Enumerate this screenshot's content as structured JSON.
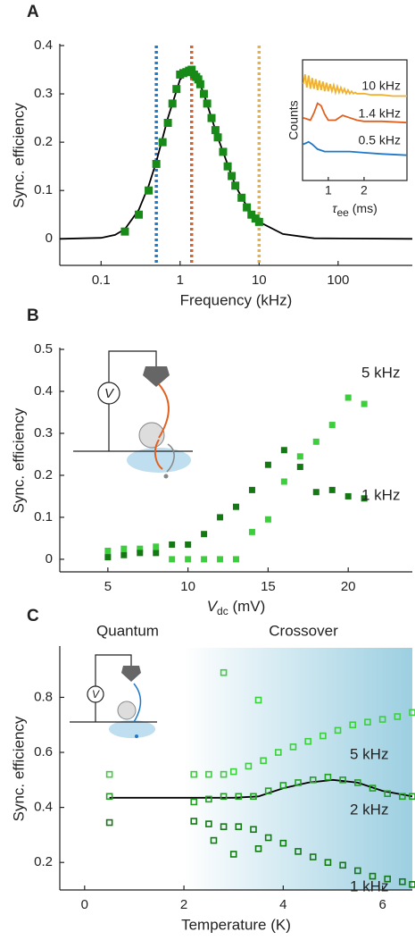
{
  "chart_data": [
    {
      "label": "A",
      "type": "scatter",
      "xscale": "log",
      "xlabel": "Frequency (kHz)",
      "ylabel": "Sync. efficiency",
      "xlim": [
        0.03,
        870
      ],
      "xticks": [
        0.1,
        1,
        10,
        100
      ],
      "ylim": [
        -0.055,
        0.4
      ],
      "yticks": [
        0,
        0.1,
        0.2,
        0.3,
        0.4
      ],
      "series": [
        {
          "color": "#178a17",
          "marker": "filled",
          "x": [
            0.2,
            0.3,
            0.4,
            0.5,
            0.6,
            0.7,
            0.8,
            0.9,
            1.0,
            1.1,
            1.2,
            1.3,
            1.4,
            1.5,
            1.6,
            1.7,
            1.8,
            2,
            2.2,
            2.5,
            2.8,
            3,
            3.5,
            4,
            4.5,
            5,
            6,
            7,
            8,
            9,
            10
          ],
          "values": [
            0.015,
            0.05,
            0.1,
            0.155,
            0.2,
            0.24,
            0.28,
            0.31,
            0.34,
            0.343,
            0.345,
            0.348,
            0.35,
            0.34,
            0.335,
            0.33,
            0.32,
            0.3,
            0.28,
            0.25,
            0.225,
            0.21,
            0.18,
            0.15,
            0.13,
            0.11,
            0.085,
            0.065,
            0.05,
            0.042,
            0.035
          ]
        }
      ],
      "curve": {
        "color": "#000000",
        "x": [
          0.03,
          0.1,
          0.15,
          0.2,
          0.3,
          0.4,
          0.5,
          0.7,
          1,
          1.3,
          1.6,
          2,
          3,
          5,
          8,
          10,
          20,
          50,
          870
        ],
        "values": [
          0,
          0.002,
          0.008,
          0.02,
          0.06,
          0.11,
          0.16,
          0.25,
          0.33,
          0.345,
          0.34,
          0.3,
          0.21,
          0.11,
          0.05,
          0.035,
          0.01,
          0.001,
          0
        ]
      },
      "vlines": [
        {
          "x": 0.5,
          "color": "#1f78c8"
        },
        {
          "x": 1.4,
          "color": "#e06020"
        },
        {
          "x": 10,
          "color": "#f0b030"
        }
      ],
      "inset": {
        "type": "line",
        "ylabel": "Counts",
        "xlabel": {
          "main": "τ",
          "sub": "ee",
          "unit": " (ms)"
        },
        "xlim": [
          0.28,
          3.2
        ],
        "xticks": [
          1,
          2
        ],
        "ylim": [
          0,
          1
        ],
        "series": [
          {
            "name": "10 kHz",
            "color": "#f0b030",
            "x": [
              0.3,
              0.35,
              0.4,
              0.45,
              0.5,
              0.55,
              0.6,
              0.65,
              0.7,
              0.75,
              0.8,
              0.85,
              0.9,
              0.95,
              1.0,
              1.05,
              1.1,
              1.15,
              1.2,
              1.25,
              1.3,
              1.35,
              1.4,
              1.45,
              1.5,
              1.55,
              1.6,
              1.65,
              1.7,
              1.75,
              1.8,
              2.0,
              2.2,
              2.5,
              2.8,
              3.2
            ],
            "values": [
              0.8,
              0.88,
              0.77,
              0.87,
              0.76,
              0.85,
              0.76,
              0.84,
              0.75,
              0.83,
              0.75,
              0.82,
              0.74,
              0.81,
              0.74,
              0.8,
              0.74,
              0.79,
              0.73,
              0.78,
              0.73,
              0.77,
              0.73,
              0.76,
              0.72,
              0.75,
              0.72,
              0.74,
              0.72,
              0.73,
              0.72,
              0.72,
              0.71,
              0.71,
              0.7,
              0.7
            ]
          },
          {
            "name": "1.4 kHz",
            "color": "#e06020",
            "x": [
              0.3,
              0.5,
              0.6,
              0.7,
              0.8,
              0.9,
              1.0,
              1.2,
              1.4,
              1.6,
              1.8,
              2.0,
              2.5,
              3.2
            ],
            "values": [
              0.52,
              0.5,
              0.56,
              0.64,
              0.62,
              0.55,
              0.5,
              0.5,
              0.54,
              0.52,
              0.5,
              0.49,
              0.49,
              0.48
            ]
          },
          {
            "name": "0.5 kHz",
            "color": "#1f78c8",
            "x": [
              0.3,
              0.45,
              0.55,
              0.7,
              0.9,
              1.2,
              1.6,
              2,
              2.5,
              3.2
            ],
            "values": [
              0.3,
              0.32,
              0.3,
              0.26,
              0.24,
              0.24,
              0.24,
              0.23,
              0.22,
              0.21
            ]
          }
        ]
      }
    },
    {
      "label": "B",
      "type": "scatter",
      "xlabel": {
        "main": "V",
        "sub": "dc",
        "unit": " (mV)"
      },
      "ylabel": "Sync. efficiency",
      "xlim": [
        2,
        24
      ],
      "xticks": [
        5,
        10,
        15,
        20
      ],
      "ylim": [
        -0.03,
        0.5
      ],
      "yticks": [
        0,
        0.1,
        0.2,
        0.3,
        0.4,
        0.5
      ],
      "inset_label": "V",
      "series": [
        {
          "name": "5 kHz",
          "color": "#3ccf3c",
          "marker": "filled",
          "x": [
            5,
            6,
            7,
            8,
            9,
            10,
            11,
            12,
            13,
            14,
            15,
            16,
            17,
            18,
            19,
            20,
            21
          ],
          "values": [
            0.02,
            0.025,
            0.025,
            0.03,
            0.0,
            0.0,
            0.0,
            0.0,
            0.0,
            0.065,
            0.095,
            0.185,
            0.245,
            0.28,
            0.32,
            0.385,
            0.37
          ]
        },
        {
          "name": "1 kHz",
          "color": "#137a13",
          "marker": "filled",
          "x": [
            5,
            6,
            7,
            8,
            9,
            10,
            11,
            12,
            13,
            14,
            15,
            16,
            17,
            18,
            19,
            20,
            21
          ],
          "values": [
            0.005,
            0.01,
            0.015,
            0.015,
            0.035,
            0.035,
            0.06,
            0.1,
            0.125,
            0.165,
            0.225,
            0.26,
            0.22,
            0.16,
            0.165,
            0.15,
            0.145
          ]
        }
      ]
    },
    {
      "label": "C",
      "type": "scatter",
      "xlabel": "Temperature (K)",
      "ylabel": "Sync. efficiency",
      "xlim": [
        -0.5,
        6.6
      ],
      "xticks": [
        0,
        2,
        4,
        6
      ],
      "ylim": [
        0.1,
        0.98
      ],
      "yticks": [
        0.2,
        0.4,
        0.6,
        0.8
      ],
      "inset_label": "V",
      "annotations": [
        "Quantum",
        "Crossover"
      ],
      "shaded_region": {
        "x0": 2,
        "color": "#9ccfe1"
      },
      "series": [
        {
          "name": "5 kHz",
          "color": "#3ccf3c",
          "marker": "open",
          "x": [
            0.5,
            2.2,
            2.5,
            2.8,
            2.8,
            3.0,
            3.3,
            3.5,
            3.6,
            3.9,
            4.2,
            4.5,
            4.8,
            5.1,
            5.4,
            5.7,
            6.0,
            6.3,
            6.6
          ],
          "values": [
            0.52,
            0.52,
            0.52,
            0.52,
            0.89,
            0.53,
            0.55,
            0.79,
            0.57,
            0.6,
            0.62,
            0.64,
            0.66,
            0.68,
            0.7,
            0.71,
            0.72,
            0.73,
            0.745
          ]
        },
        {
          "name": "2 kHz",
          "color": "#24a024",
          "marker": "open",
          "x": [
            0.5,
            2.2,
            2.5,
            2.8,
            3.1,
            3.4,
            3.7,
            4.0,
            4.3,
            4.6,
            4.9,
            5.2,
            5.5,
            5.8,
            6.1,
            6.4,
            6.6
          ],
          "values": [
            0.44,
            0.42,
            0.43,
            0.44,
            0.44,
            0.44,
            0.46,
            0.48,
            0.49,
            0.5,
            0.51,
            0.5,
            0.49,
            0.47,
            0.45,
            0.44,
            0.44
          ]
        },
        {
          "name": "1 kHz",
          "color": "#137a13",
          "marker": "open",
          "x": [
            0.5,
            2.2,
            2.5,
            2.6,
            2.8,
            3.0,
            3.1,
            3.4,
            3.5,
            3.7,
            4.0,
            4.3,
            4.6,
            4.9,
            5.2,
            5.5,
            5.8,
            6.1,
            6.4,
            6.6
          ],
          "values": [
            0.345,
            0.35,
            0.34,
            0.28,
            0.33,
            0.23,
            0.33,
            0.32,
            0.25,
            0.29,
            0.27,
            0.24,
            0.22,
            0.2,
            0.19,
            0.17,
            0.15,
            0.14,
            0.13,
            0.12
          ]
        }
      ],
      "curve": {
        "color": "#000000",
        "x": [
          0.5,
          3.0,
          3.5,
          4,
          4.5,
          5,
          5.5,
          6,
          6.6
        ],
        "values": [
          0.435,
          0.435,
          0.44,
          0.47,
          0.49,
          0.5,
          0.49,
          0.46,
          0.44
        ]
      }
    }
  ]
}
